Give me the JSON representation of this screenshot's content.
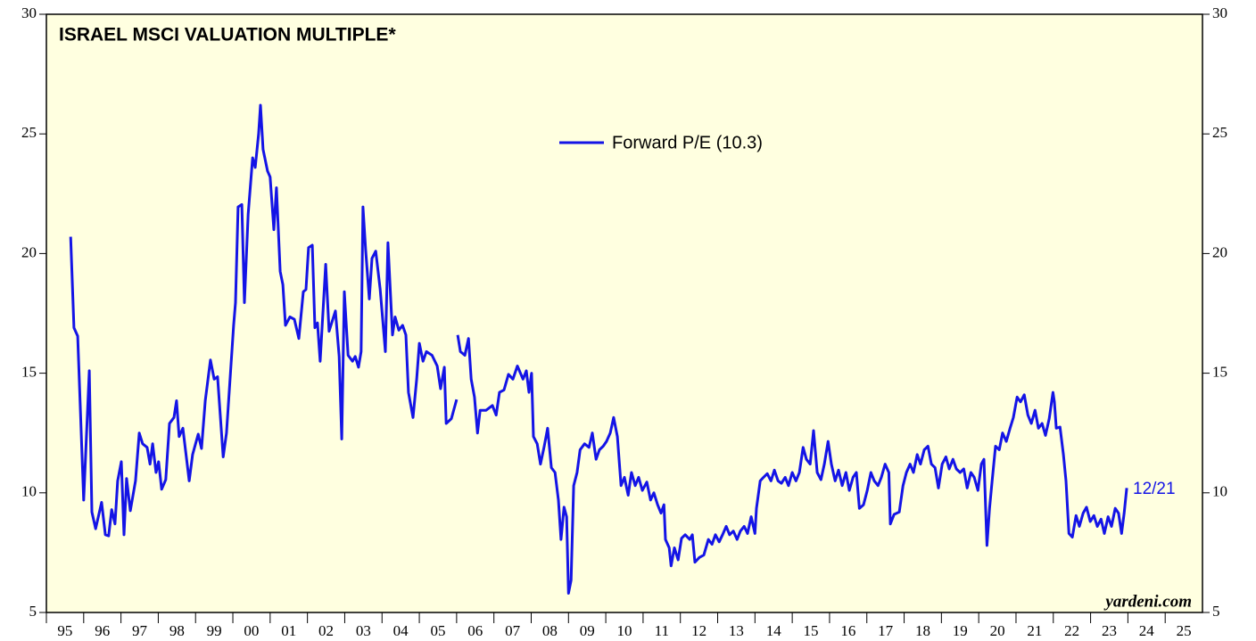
{
  "chart_data": {
    "type": "line",
    "title": "ISRAEL MSCI VALUATION MULTIPLE*",
    "annotations": [
      "12/21",
      "yardeni.com"
    ],
    "xlim": [
      1995,
      2026
    ],
    "xticks": [
      {
        "value": 1995,
        "label": "95"
      },
      {
        "value": 1996,
        "label": "96"
      },
      {
        "value": 1997,
        "label": "97"
      },
      {
        "value": 1998,
        "label": "98"
      },
      {
        "value": 1999,
        "label": "99"
      },
      {
        "value": 2000,
        "label": "00"
      },
      {
        "value": 2001,
        "label": "01"
      },
      {
        "value": 2002,
        "label": "02"
      },
      {
        "value": 2003,
        "label": "03"
      },
      {
        "value": 2004,
        "label": "04"
      },
      {
        "value": 2005,
        "label": "05"
      },
      {
        "value": 2006,
        "label": "06"
      },
      {
        "value": 2007,
        "label": "07"
      },
      {
        "value": 2008,
        "label": "08"
      },
      {
        "value": 2009,
        "label": "09"
      },
      {
        "value": 2010,
        "label": "10"
      },
      {
        "value": 2011,
        "label": "11"
      },
      {
        "value": 2012,
        "label": "12"
      },
      {
        "value": 2013,
        "label": "13"
      },
      {
        "value": 2014,
        "label": "14"
      },
      {
        "value": 2015,
        "label": "15"
      },
      {
        "value": 2016,
        "label": "16"
      },
      {
        "value": 2017,
        "label": "17"
      },
      {
        "value": 2018,
        "label": "18"
      },
      {
        "value": 2019,
        "label": "19"
      },
      {
        "value": 2020,
        "label": "20"
      },
      {
        "value": 2021,
        "label": "21"
      },
      {
        "value": 2022,
        "label": "22"
      },
      {
        "value": 2023,
        "label": "23"
      },
      {
        "value": 2024,
        "label": "24"
      },
      {
        "value": 2025,
        "label": "25"
      }
    ],
    "ylim": [
      5,
      30
    ],
    "yticks": [
      5,
      10,
      15,
      20,
      25,
      30
    ],
    "grid": false,
    "legend": "top-center",
    "background": "#ffffe0",
    "x": [
      1995.65,
      1995.74,
      1995.84,
      1996.0,
      1996.15,
      1996.22,
      1996.32,
      1996.48,
      1996.58,
      1996.67,
      1996.75,
      1996.84,
      1996.91,
      1997.01,
      1997.08,
      1997.15,
      1997.25,
      1997.39,
      1997.49,
      1997.58,
      1997.7,
      1997.78,
      1997.85,
      1997.94,
      1998.01,
      1998.09,
      1998.2,
      1998.3,
      1998.42,
      1998.49,
      1998.56,
      1998.66,
      1998.83,
      1998.92,
      1999.07,
      1999.16,
      1999.26,
      1999.4,
      1999.5,
      1999.59,
      1999.74,
      1999.83,
      2000.02,
      2000.07,
      2000.14,
      2000.24,
      2000.31,
      2000.41,
      2000.53,
      2000.6,
      2000.69,
      2000.74,
      2000.81,
      2000.93,
      2001.0,
      2001.1,
      2001.17,
      2001.27,
      2001.34,
      2001.41,
      2001.53,
      2001.65,
      2001.77,
      2001.89,
      2001.96,
      2002.03,
      2002.13,
      2002.2,
      2002.27,
      2002.34,
      2002.49,
      2002.58,
      2002.75,
      2002.85,
      2002.92,
      2002.99,
      2003.09,
      2003.21,
      2003.28,
      2003.37,
      2003.44,
      2003.49,
      2003.56,
      2003.66,
      2003.73,
      2003.83,
      2003.95,
      2004.09,
      2004.16,
      2004.28,
      2004.35,
      2004.45,
      2004.55,
      2004.64,
      2004.71,
      2004.83,
      2004.93,
      2005.0,
      2005.1,
      2005.19,
      2005.34,
      2005.48,
      2005.57,
      2005.67,
      2005.72,
      2005.86,
      2006.0,
      2006.02,
      2006.03,
      2006.1,
      2006.22,
      2006.32,
      2006.39,
      2006.48,
      2006.56,
      2006.63,
      2006.79,
      2006.96,
      2007.06,
      2007.15,
      2007.27,
      2007.39,
      2007.51,
      2007.63,
      2007.78,
      2007.87,
      2007.94,
      2008.01,
      2008.06,
      2008.16,
      2008.25,
      2008.35,
      2008.44,
      2008.54,
      2008.64,
      2008.73,
      2008.8,
      2008.88,
      2008.95,
      2009.0,
      2009.07,
      2009.14,
      2009.23,
      2009.31,
      2009.43,
      2009.55,
      2009.64,
      2009.74,
      2009.83,
      2009.93,
      2010.02,
      2010.12,
      2010.21,
      2010.31,
      2010.41,
      2010.5,
      2010.6,
      2010.69,
      2010.79,
      2010.88,
      2010.98,
      2011.1,
      2011.2,
      2011.29,
      2011.39,
      2011.48,
      2011.56,
      2011.6,
      2011.7,
      2011.75,
      2011.84,
      2011.94,
      2012.03,
      2012.13,
      2012.25,
      2012.32,
      2012.39,
      2012.51,
      2012.63,
      2012.75,
      2012.85,
      2012.94,
      2013.04,
      2013.13,
      2013.23,
      2013.32,
      2013.42,
      2013.52,
      2013.61,
      2013.71,
      2013.8,
      2013.9,
      2014.0,
      2014.04,
      2014.14,
      2014.23,
      2014.33,
      2014.43,
      2014.52,
      2014.62,
      2014.71,
      2014.81,
      2014.9,
      2015.0,
      2015.1,
      2015.19,
      2015.29,
      2015.38,
      2015.48,
      2015.57,
      2015.67,
      2015.77,
      2015.86,
      2015.96,
      2016.05,
      2016.15,
      2016.24,
      2016.34,
      2016.44,
      2016.53,
      2016.63,
      2016.72,
      2016.8,
      2016.91,
      2017.01,
      2017.11,
      2017.2,
      2017.3,
      2017.39,
      2017.49,
      2017.59,
      2017.63,
      2017.73,
      2017.87,
      2017.97,
      2018.06,
      2018.16,
      2018.25,
      2018.35,
      2018.44,
      2018.54,
      2018.64,
      2018.73,
      2018.83,
      2018.92,
      2019.02,
      2019.12,
      2019.21,
      2019.31,
      2019.4,
      2019.5,
      2019.6,
      2019.69,
      2019.79,
      2019.88,
      2019.98,
      2020.07,
      2020.14,
      2020.22,
      2020.29,
      2020.36,
      2020.45,
      2020.55,
      2020.64,
      2020.74,
      2020.84,
      2020.93,
      2021.03,
      2021.12,
      2021.22,
      2021.32,
      2021.41,
      2021.51,
      2021.6,
      2021.7,
      2021.79,
      2021.89,
      2021.99,
      2022.03,
      2022.08,
      2022.18,
      2022.27,
      2022.34,
      2022.42,
      2022.51,
      2022.61,
      2022.7,
      2022.8,
      2022.89,
      2022.99,
      2023.09,
      2023.18,
      2023.28,
      2023.37,
      2023.47,
      2023.56,
      2023.66,
      2023.75,
      2023.83,
      2023.9,
      2023.97
    ],
    "series": [
      {
        "name": "Forward P/E (10.3)",
        "color": "#1414e6",
        "values": [
          20.7,
          16.9,
          16.55,
          9.7,
          15.1,
          9.2,
          8.5,
          9.6,
          8.25,
          8.2,
          9.3,
          8.7,
          10.5,
          11.3,
          8.25,
          10.6,
          9.25,
          10.5,
          12.5,
          12.05,
          11.9,
          11.2,
          12.05,
          10.85,
          11.3,
          10.15,
          10.55,
          12.9,
          13.15,
          13.85,
          12.35,
          12.7,
          10.5,
          11.6,
          12.45,
          11.85,
          13.85,
          15.55,
          14.75,
          14.85,
          11.5,
          12.5,
          17.0,
          17.95,
          21.95,
          22.05,
          17.95,
          21.65,
          24.0,
          23.6,
          25.0,
          26.2,
          24.35,
          23.45,
          23.2,
          21.0,
          22.75,
          19.25,
          18.7,
          17.0,
          17.35,
          17.25,
          16.45,
          18.4,
          18.5,
          20.25,
          20.35,
          16.9,
          17.1,
          15.5,
          19.55,
          16.75,
          17.6,
          15.7,
          12.25,
          18.4,
          15.75,
          15.5,
          15.7,
          15.25,
          15.9,
          21.95,
          20.15,
          18.1,
          19.8,
          20.1,
          18.5,
          15.9,
          20.45,
          16.6,
          17.35,
          16.8,
          17.0,
          16.6,
          14.2,
          13.15,
          14.75,
          16.25,
          15.5,
          15.9,
          15.75,
          15.3,
          14.35,
          15.25,
          12.9,
          13.1,
          13.9,
          null,
          16.6,
          15.9,
          15.75,
          16.45,
          14.75,
          14.0,
          12.5,
          13.45,
          13.45,
          13.65,
          13.25,
          14.2,
          14.3,
          14.95,
          14.75,
          15.3,
          14.75,
          15.1,
          14.2,
          15.0,
          12.35,
          12.05,
          11.2,
          11.95,
          12.7,
          11.05,
          10.85,
          9.7,
          8.05,
          9.4,
          9.0,
          5.8,
          6.35,
          10.3,
          10.85,
          11.8,
          12.05,
          11.9,
          12.5,
          11.4,
          11.8,
          11.95,
          12.15,
          12.5,
          13.15,
          12.35,
          10.3,
          10.65,
          9.9,
          10.85,
          10.3,
          10.65,
          10.1,
          10.45,
          9.7,
          10.0,
          9.5,
          9.15,
          9.5,
          8.05,
          7.7,
          6.95,
          7.7,
          7.2,
          8.1,
          8.25,
          8.05,
          8.25,
          7.1,
          7.3,
          7.4,
          8.05,
          7.85,
          8.25,
          7.95,
          8.25,
          8.6,
          8.25,
          8.4,
          8.05,
          8.4,
          8.6,
          8.3,
          9.0,
          8.3,
          9.35,
          10.5,
          10.65,
          10.8,
          10.5,
          10.95,
          10.5,
          10.4,
          10.65,
          10.3,
          10.85,
          10.5,
          10.85,
          11.9,
          11.4,
          11.2,
          12.6,
          10.85,
          10.55,
          11.2,
          12.15,
          11.2,
          10.5,
          10.95,
          10.3,
          10.85,
          10.1,
          10.65,
          10.85,
          9.35,
          9.5,
          10.1,
          10.85,
          10.5,
          10.3,
          10.65,
          11.2,
          10.85,
          8.7,
          9.1,
          9.2,
          10.3,
          10.85,
          11.2,
          10.85,
          11.6,
          11.2,
          11.8,
          11.95,
          11.2,
          11.05,
          10.2,
          11.2,
          11.5,
          11.0,
          11.4,
          11.0,
          10.85,
          11.0,
          10.2,
          10.85,
          10.65,
          10.1,
          11.2,
          11.4,
          7.8,
          9.35,
          10.5,
          11.95,
          11.8,
          12.5,
          12.15,
          12.7,
          13.15,
          14.0,
          13.8,
          14.1,
          13.25,
          12.9,
          13.45,
          12.7,
          12.9,
          12.4,
          13.1,
          14.2,
          13.8,
          12.7,
          12.75,
          11.6,
          10.5,
          8.3,
          8.15,
          9.05,
          8.6,
          9.15,
          9.4,
          8.8,
          9.05,
          8.6,
          8.9,
          8.3,
          9.0,
          8.6,
          9.35,
          9.15,
          8.3,
          9.15,
          10.2
        ]
      }
    ]
  }
}
